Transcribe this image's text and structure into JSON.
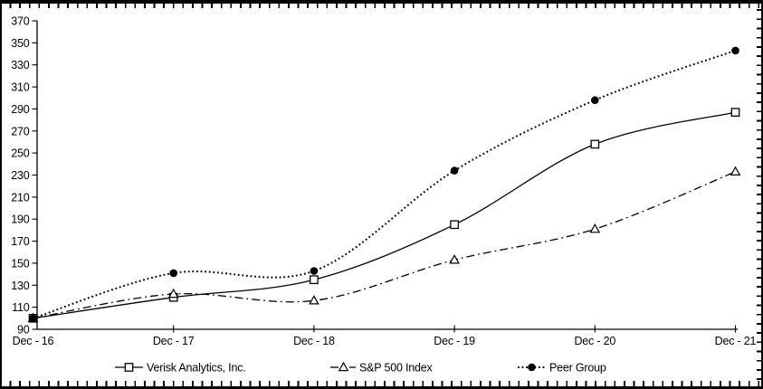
{
  "chart_data": {
    "type": "line",
    "title": "",
    "xlabel": "",
    "ylabel": "",
    "categories": [
      "Dec - 16",
      "Dec - 17",
      "Dec - 18",
      "Dec - 19",
      "Dec - 20",
      "Dec - 21"
    ],
    "series": [
      {
        "name": "Verisk Analytics, Inc.",
        "values": [
          100,
          119,
          135,
          185,
          258,
          287
        ],
        "line_style": "solid",
        "marker": "open-square"
      },
      {
        "name": "S&P 500 Index",
        "values": [
          100,
          122,
          116,
          153,
          181,
          233
        ],
        "line_style": "dash-dot",
        "marker": "open-triangle"
      },
      {
        "name": "Peer Group",
        "values": [
          100,
          141,
          143,
          234,
          298,
          343
        ],
        "line_style": "dotted",
        "marker": "filled-circle"
      }
    ],
    "ylim": [
      90,
      370
    ],
    "ytick_step": 20,
    "yticks": [
      90,
      110,
      130,
      150,
      170,
      190,
      210,
      230,
      250,
      270,
      290,
      310,
      330,
      350,
      370
    ],
    "grid": false,
    "legend_position": "bottom",
    "colors": {
      "line": "#000000",
      "text": "#000000",
      "background": "#ffffff",
      "frame": "#000000"
    }
  }
}
